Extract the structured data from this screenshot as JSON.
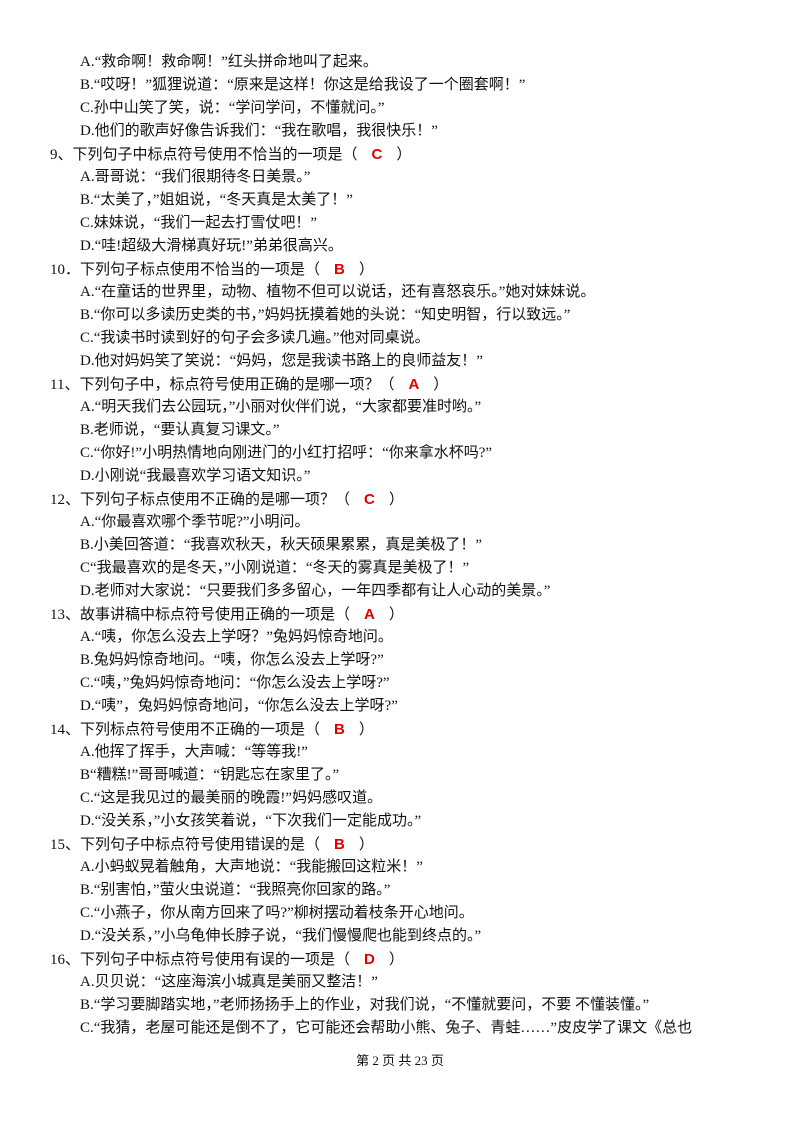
{
  "continued_options": [
    "A.“救命啊！救命啊！”红头拼命地叫了起来。",
    "B.“哎呀！”狐狸说道：“原来是这样！你这是给我设了一个圈套啊！”",
    "C.孙中山笑了笑，说：“学问学问，不懂就问。”",
    "D.他们的歌声好像告诉我们：“我在歌唱，我很快乐！”"
  ],
  "questions": [
    {
      "stem": "9、下列句子中标点符号使用不恰当的一项是（",
      "answer": "C",
      "close": "）",
      "options": [
        "A.哥哥说：“我们很期待冬日美景。”",
        "B.“太美了，”姐姐说，“冬天真是太美了！”",
        "C.妹妹说，“我们一起去打雪仗吧！”",
        "D.“哇!超级大滑梯真好玩!”弟弟很高兴。"
      ]
    },
    {
      "stem": "10．下列句子标点使用不恰当的一项是（",
      "answer": "B",
      "close": "）",
      "options": [
        "A.“在童话的世界里，动物、植物不但可以说话，还有喜怒哀乐。”她对妹妹说。",
        "B.“你可以多读历史类的书，”妈妈抚摸着她的头说：“知史明智，行以致远。”",
        "C.“我读书时读到好的句子会多读几遍。”他对同桌说。",
        "D.他对妈妈笑了笑说：“妈妈，您是我读书路上的良师益友！”"
      ]
    },
    {
      "stem": "11、下列句子中，标点符号使用正确的是哪一项？（",
      "answer": "A",
      "close": "）",
      "options": [
        "A.“明天我们去公园玩，”小丽对伙伴们说，“大家都要准时哟。”",
        "B.老师说，“要认真复习课文。”",
        "C.“你好!”小明热情地向刚进门的小红打招呼：“你来拿水杯吗?”",
        "D.小刚说“我最喜欢学习语文知识。”"
      ]
    },
    {
      "stem": "12、下列句子标点使用不正确的是哪一项？（",
      "answer": "C",
      "close": "）",
      "options": [
        "A.“你最喜欢哪个季节呢?”小明问。",
        "B.小美回答道：“我喜欢秋天，秋天硕果累累，真是美极了！”",
        "C“我最喜欢的是冬天，”小刚说道：“冬天的雾真是美极了！”",
        "D.老师对大家说：“只要我们多多留心，一年四季都有让人心动的美景。”"
      ]
    },
    {
      "stem": "13、故事讲稿中标点符号使用正确的一项是（",
      "answer": "A",
      "close": "）",
      "options": [
        "A.“咦，你怎么没去上学呀？”兔妈妈惊奇地问。",
        "B.兔妈妈惊奇地问。“咦，你怎么没去上学呀?”",
        "C.“咦，”兔妈妈惊奇地问：“你怎么没去上学呀?”",
        "D.“咦”，兔妈妈惊奇地问，“你怎么没去上学呀?”"
      ]
    },
    {
      "stem": "14、下列标点符号使用不正确的一项是（",
      "answer": "B",
      "close": "）",
      "options": [
        "A.他挥了挥手，大声喊：“等等我!”",
        "B“糟糕!”哥哥喊道：“钥匙忘在家里了。”",
        "C.“这是我见过的最美丽的晚霞!”妈妈感叹道。",
        "D.“没关系，”小女孩笑着说，“下次我们一定能成功。”"
      ]
    },
    {
      "stem": "15、下列句子中标点符号使用错误的是（",
      "answer": "B",
      "close": "）",
      "options": [
        "A.小蚂蚁晃着触角，大声地说：“我能搬回这粒米！”",
        "B.“别害怕，”萤火虫说道：“我照亮你回家的路。”",
        "C.“小燕子，你从南方回来了吗?”柳树摆动着枝条开心地问。",
        "D.“没关系，”小乌龟伸长脖子说，“我们慢慢爬也能到终点的。”"
      ]
    },
    {
      "stem": "16、下列句子中标点符号使用有误的一项是（",
      "answer": "D",
      "close": "）",
      "options": [
        "A.贝贝说：“这座海滨小城真是美丽又整洁！”",
        "B.“学习要脚踏实地，”老师扬扬手上的作业，对我们说，“不懂就要问，不要 不懂装懂。”",
        "C.“我猜，老屋可能还是倒不了，它可能还会帮助小熊、兔子、青蛙……”皮皮学了课文《总也"
      ]
    }
  ],
  "footer": "第 2 页 共 23 页"
}
